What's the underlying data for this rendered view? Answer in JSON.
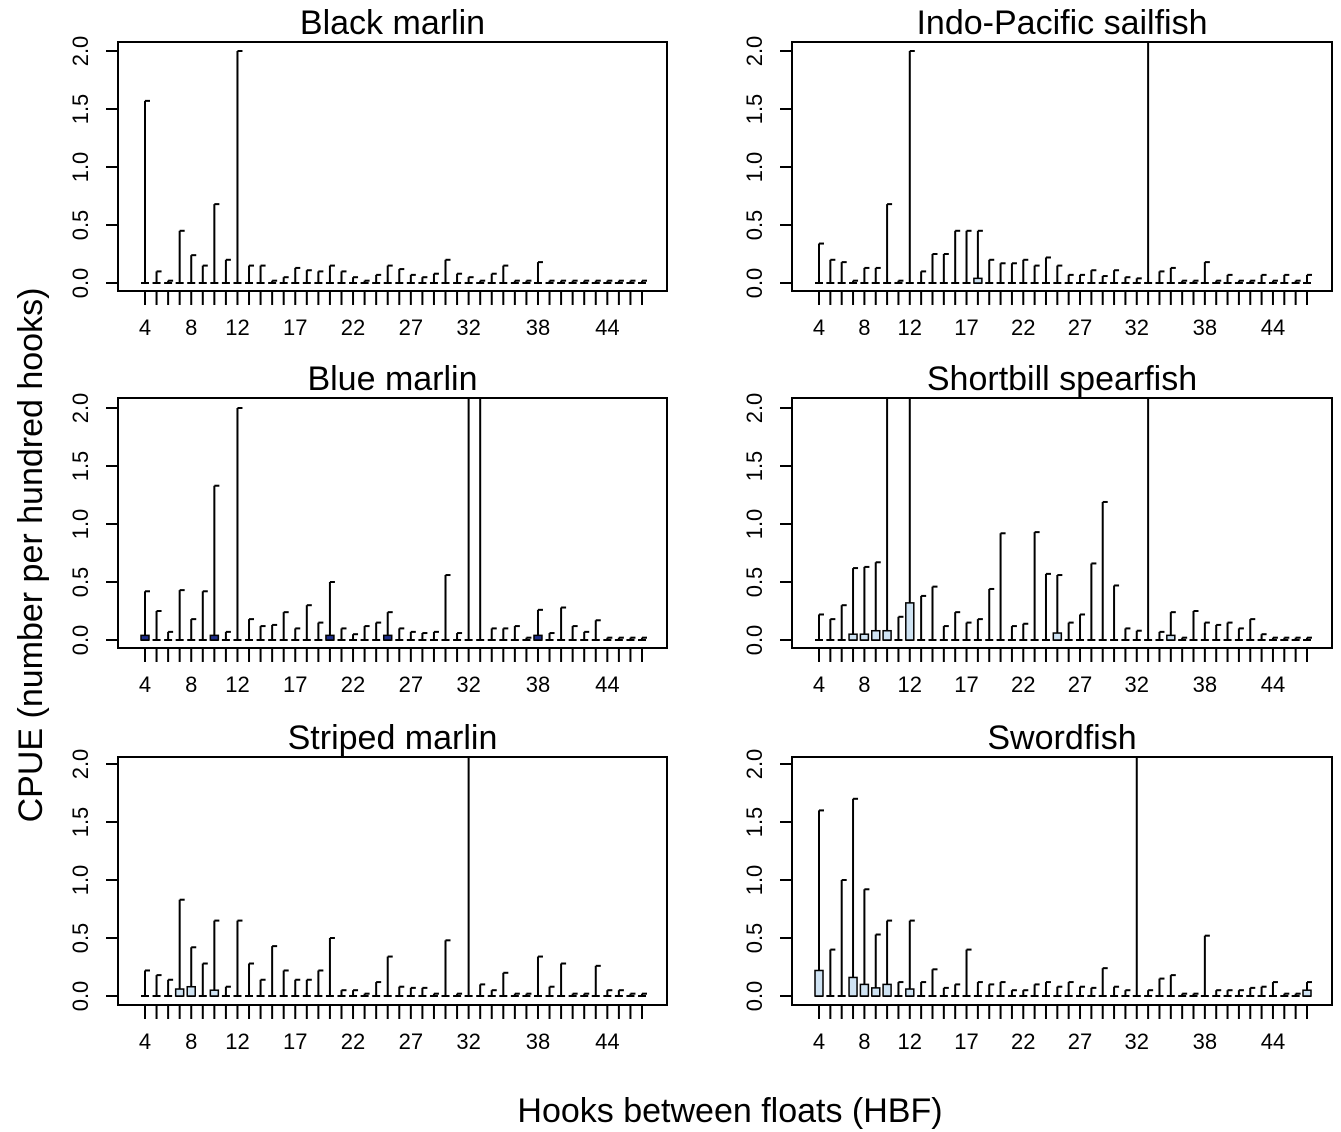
{
  "figure": {
    "ylabel": "CPUE (number per hundred hooks)",
    "xlabel": "Hooks between floats (HBF)"
  },
  "chart_data": [
    {
      "type": "boxplot",
      "title": "Black marlin",
      "x": [
        4,
        5,
        6,
        7,
        8,
        9,
        10,
        11,
        12,
        13,
        14,
        15,
        16,
        17,
        18,
        19,
        20,
        21,
        22,
        23,
        24,
        25,
        26,
        27,
        28,
        29,
        30,
        31,
        32,
        33,
        34,
        35,
        36,
        37,
        38,
        39,
        40,
        41,
        42,
        43,
        44,
        45,
        46,
        47
      ],
      "whisker_max": [
        1.57,
        0.1,
        0.02,
        0.45,
        0.24,
        0.15,
        0.68,
        0.2,
        2.0,
        0.15,
        0.15,
        0.02,
        0.05,
        0.13,
        0.11,
        0.1,
        0.15,
        0.1,
        0.05,
        0.02,
        0.07,
        0.15,
        0.12,
        0.07,
        0.05,
        0.08,
        0.2,
        0.08,
        0.05,
        0.02,
        0.08,
        0.15,
        0.02,
        0.02,
        0.18,
        0.02,
        0.02,
        0.02,
        0.02,
        0.02,
        0.02,
        0.02,
        0.02,
        0.02
      ],
      "box_q3": [
        0,
        0,
        0,
        0,
        0,
        0,
        0,
        0,
        0,
        0,
        0,
        0,
        0,
        0,
        0,
        0,
        0,
        0,
        0,
        0,
        0,
        0,
        0,
        0,
        0,
        0,
        0,
        0,
        0,
        0,
        0,
        0,
        0,
        0,
        0,
        0,
        0,
        0,
        0,
        0,
        0,
        0,
        0,
        0
      ],
      "xticks": [
        "4",
        "8",
        "12",
        "17",
        "22",
        "27",
        "32",
        "38",
        "44"
      ],
      "yticks": [
        "0.0",
        "0.5",
        "1.0",
        "1.5",
        "2.0"
      ],
      "ylim": [
        0,
        2.05
      ]
    },
    {
      "type": "boxplot",
      "title": "Indo-Pacific sailfish",
      "x": [
        4,
        5,
        6,
        7,
        8,
        9,
        10,
        11,
        12,
        13,
        14,
        15,
        16,
        17,
        18,
        19,
        20,
        21,
        22,
        23,
        24,
        25,
        26,
        27,
        28,
        29,
        30,
        31,
        32,
        33,
        34,
        35,
        36,
        37,
        38,
        39,
        40,
        41,
        42,
        43,
        44,
        45,
        46,
        47
      ],
      "whisker_max": [
        0.34,
        0.2,
        0.18,
        0.02,
        0.13,
        0.13,
        0.68,
        0.02,
        2.0,
        0.1,
        0.25,
        0.25,
        0.45,
        0.45,
        0.45,
        0.2,
        0.17,
        0.17,
        0.2,
        0.15,
        0.22,
        0.15,
        0.07,
        0.07,
        0.11,
        0.06,
        0.11,
        0.05,
        0.04,
        2.1,
        0.1,
        0.13,
        0.02,
        0.02,
        0.18,
        0.02,
        0.07,
        0.02,
        0.02,
        0.07,
        0.02,
        0.07,
        0.02,
        0.07
      ],
      "box_q3": [
        0,
        0,
        0,
        0,
        0,
        0,
        0,
        0,
        0,
        0,
        0,
        0,
        0,
        0,
        0.04,
        0,
        0,
        0,
        0,
        0,
        0,
        0,
        0,
        0,
        0,
        0,
        0,
        0,
        0,
        0,
        0,
        0,
        0,
        0,
        0,
        0,
        0,
        0,
        0,
        0,
        0,
        0,
        0,
        0
      ],
      "xticks": [
        "4",
        "8",
        "12",
        "17",
        "22",
        "27",
        "32",
        "38",
        "44"
      ],
      "yticks": [
        "0.0",
        "0.5",
        "1.0",
        "1.5",
        "2.0"
      ],
      "ylim": [
        0,
        2.05
      ]
    },
    {
      "type": "boxplot",
      "title": "Blue marlin",
      "x": [
        4,
        5,
        6,
        7,
        8,
        9,
        10,
        11,
        12,
        13,
        14,
        15,
        16,
        17,
        18,
        19,
        20,
        21,
        22,
        23,
        24,
        25,
        26,
        27,
        28,
        29,
        30,
        31,
        32,
        33,
        34,
        35,
        36,
        37,
        38,
        39,
        40,
        41,
        42,
        43,
        44,
        45,
        46,
        47
      ],
      "whisker_max": [
        0.42,
        0.25,
        0.07,
        0.43,
        0.18,
        0.42,
        1.33,
        0.07,
        2.0,
        0.18,
        0.12,
        0.13,
        0.24,
        0.1,
        0.3,
        0.15,
        0.5,
        0.1,
        0.05,
        0.12,
        0.15,
        0.24,
        0.1,
        0.07,
        0.06,
        0.07,
        0.56,
        0.06,
        2.1,
        2.1,
        0.1,
        0.1,
        0.12,
        0.02,
        0.26,
        0.06,
        0.28,
        0.12,
        0.07,
        0.17,
        0.02,
        0.02,
        0.02,
        0.02
      ],
      "box_q3": [
        0.04,
        0,
        0,
        0,
        0,
        0,
        0.04,
        0,
        0,
        0,
        0,
        0,
        0,
        0,
        0,
        0,
        0.04,
        0,
        0,
        0,
        0,
        0.04,
        0,
        0,
        0,
        0,
        0,
        0,
        0,
        0,
        0,
        0,
        0,
        0,
        0.04,
        0,
        0,
        0,
        0,
        0,
        0,
        0,
        0,
        0
      ],
      "xticks": [
        "4",
        "8",
        "12",
        "17",
        "22",
        "27",
        "32",
        "38",
        "44"
      ],
      "yticks": [
        "0.0",
        "0.5",
        "1.0",
        "1.5",
        "2.0"
      ],
      "ylim": [
        0,
        2.05
      ]
    },
    {
      "type": "boxplot",
      "title": "Shortbill spearfish",
      "x": [
        4,
        5,
        6,
        7,
        8,
        9,
        10,
        11,
        12,
        13,
        14,
        15,
        16,
        17,
        18,
        19,
        20,
        21,
        22,
        23,
        24,
        25,
        26,
        27,
        28,
        29,
        30,
        31,
        32,
        33,
        34,
        35,
        36,
        37,
        38,
        39,
        40,
        41,
        42,
        43,
        44,
        45,
        46,
        47
      ],
      "whisker_max": [
        0.22,
        0.18,
        0.3,
        0.62,
        0.63,
        0.67,
        2.1,
        0.2,
        2.1,
        0.38,
        0.46,
        0.12,
        0.24,
        0.15,
        0.18,
        0.44,
        0.92,
        0.12,
        0.14,
        0.93,
        0.57,
        0.56,
        0.15,
        0.22,
        0.66,
        1.19,
        0.47,
        0.1,
        0.08,
        2.1,
        0.07,
        0.24,
        0.02,
        0.25,
        0.15,
        0.13,
        0.15,
        0.1,
        0.18,
        0.05,
        0.02,
        0.02,
        0.02,
        0.02
      ],
      "box_q3": [
        0,
        0,
        0,
        0.05,
        0.05,
        0.08,
        0.08,
        0,
        0.32,
        0,
        0,
        0,
        0,
        0,
        0,
        0,
        0,
        0,
        0,
        0,
        0,
        0.06,
        0,
        0,
        0,
        0,
        0,
        0,
        0,
        0,
        0,
        0.04,
        0,
        0,
        0,
        0,
        0,
        0,
        0,
        0,
        0,
        0,
        0,
        0
      ],
      "xticks": [
        "4",
        "8",
        "12",
        "17",
        "22",
        "27",
        "32",
        "38",
        "44"
      ],
      "yticks": [
        "0.0",
        "0.5",
        "1.0",
        "1.5",
        "2.0"
      ],
      "ylim": [
        0,
        2.05
      ]
    },
    {
      "type": "boxplot",
      "title": "Striped marlin",
      "x": [
        4,
        5,
        6,
        7,
        8,
        9,
        10,
        11,
        12,
        13,
        14,
        15,
        16,
        17,
        18,
        19,
        20,
        21,
        22,
        23,
        24,
        25,
        26,
        27,
        28,
        29,
        30,
        31,
        32,
        33,
        34,
        35,
        36,
        37,
        38,
        39,
        40,
        41,
        42,
        43,
        44,
        45,
        46,
        47
      ],
      "whisker_max": [
        0.22,
        0.18,
        0.14,
        0.83,
        0.42,
        0.28,
        0.65,
        0.08,
        0.65,
        0.28,
        0.14,
        0.43,
        0.22,
        0.14,
        0.14,
        0.22,
        0.5,
        0.05,
        0.05,
        0.02,
        0.12,
        0.34,
        0.08,
        0.07,
        0.07,
        0.02,
        0.48,
        0.02,
        2.1,
        0.1,
        0.05,
        0.2,
        0.02,
        0.02,
        0.34,
        0.08,
        0.28,
        0.02,
        0.02,
        0.26,
        0.05,
        0.05,
        0.02,
        0.02
      ],
      "box_q3": [
        0,
        0,
        0,
        0.06,
        0.08,
        0,
        0.05,
        0,
        0,
        0,
        0,
        0,
        0,
        0,
        0,
        0,
        0,
        0,
        0,
        0,
        0,
        0,
        0,
        0,
        0,
        0,
        0,
        0,
        0,
        0,
        0,
        0,
        0,
        0,
        0,
        0,
        0,
        0,
        0,
        0,
        0,
        0,
        0,
        0
      ],
      "xticks": [
        "4",
        "8",
        "12",
        "17",
        "22",
        "27",
        "32",
        "38",
        "44"
      ],
      "yticks": [
        "0.0",
        "0.5",
        "1.0",
        "1.5",
        "2.0"
      ],
      "ylim": [
        0,
        2.05
      ]
    },
    {
      "type": "boxplot",
      "title": "Swordfish",
      "x": [
        4,
        5,
        6,
        7,
        8,
        9,
        10,
        11,
        12,
        13,
        14,
        15,
        16,
        17,
        18,
        19,
        20,
        21,
        22,
        23,
        24,
        25,
        26,
        27,
        28,
        29,
        30,
        31,
        32,
        33,
        34,
        35,
        36,
        37,
        38,
        39,
        40,
        41,
        42,
        43,
        44,
        45,
        46,
        47
      ],
      "whisker_max": [
        1.6,
        0.4,
        1.0,
        1.7,
        0.92,
        0.53,
        0.65,
        0.12,
        0.65,
        0.12,
        0.23,
        0.07,
        0.1,
        0.4,
        0.12,
        0.1,
        0.12,
        0.05,
        0.05,
        0.1,
        0.12,
        0.08,
        0.12,
        0.08,
        0.07,
        0.24,
        0.08,
        0.05,
        2.1,
        0.05,
        0.15,
        0.18,
        0.02,
        0.02,
        0.52,
        0.05,
        0.05,
        0.05,
        0.07,
        0.08,
        0.12,
        0.02,
        0.02,
        0.12
      ],
      "box_q3": [
        0.22,
        0,
        0,
        0.16,
        0.1,
        0.07,
        0.1,
        0,
        0.06,
        0,
        0,
        0,
        0,
        0,
        0,
        0,
        0,
        0,
        0,
        0,
        0,
        0,
        0,
        0,
        0,
        0,
        0,
        0,
        0,
        0,
        0,
        0,
        0,
        0,
        0,
        0,
        0,
        0,
        0,
        0,
        0,
        0,
        0,
        0.05
      ],
      "xticks": [
        "4",
        "8",
        "12",
        "17",
        "22",
        "27",
        "32",
        "38",
        "44"
      ],
      "yticks": [
        "0.0",
        "0.5",
        "1.0",
        "1.5",
        "2.0"
      ],
      "ylim": [
        0,
        2.05
      ]
    }
  ]
}
